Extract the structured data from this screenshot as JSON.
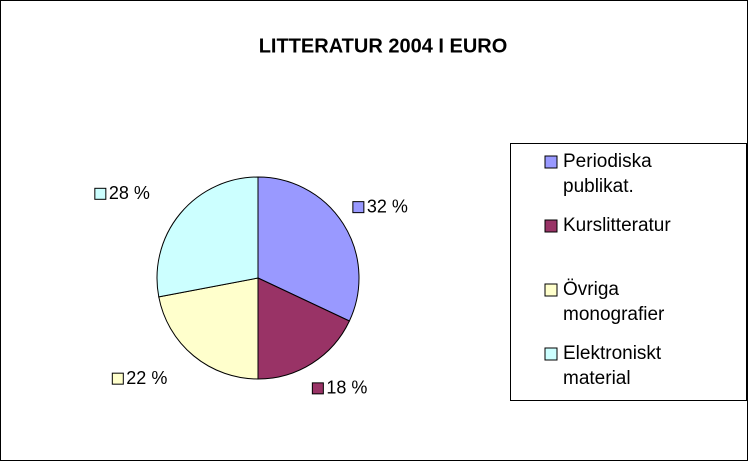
{
  "chart_data": {
    "type": "pie",
    "title": "LITTERATUR 2004 I EURO",
    "categories": [
      "Periodiska publikat.",
      "Kurslitteratur",
      "Övriga monografier",
      "Elektroniskt material"
    ],
    "values": [
      32,
      18,
      22,
      28
    ],
    "value_labels": [
      "32 %",
      "18 %",
      "22 %",
      "28 %"
    ],
    "colors": [
      "#9999ff",
      "#993366",
      "#ffffcc",
      "#ccffff"
    ],
    "legend": "right"
  }
}
